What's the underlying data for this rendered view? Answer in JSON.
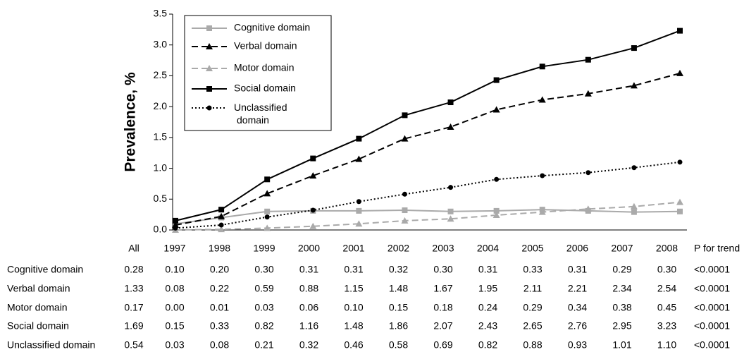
{
  "chart_data": {
    "type": "line",
    "y_label": "Prevalence, %",
    "categories": [
      "1997",
      "1998",
      "1999",
      "2000",
      "2001",
      "2002",
      "2003",
      "2004",
      "2005",
      "2006",
      "2007",
      "2008"
    ],
    "ylim": [
      0,
      3.5
    ],
    "yticks": [
      {
        "value": 0,
        "label": "0.0"
      },
      {
        "value": 0.5,
        "label": "0.5"
      },
      {
        "value": 1,
        "label": "1.0"
      },
      {
        "value": 1.5,
        "label": "1.5"
      },
      {
        "value": 2,
        "label": "2.0"
      },
      {
        "value": 2.5,
        "label": "2.5"
      },
      {
        "value": 3,
        "label": "3.0"
      },
      {
        "value": 3.5,
        "label": "3.5"
      }
    ],
    "table_headers": {
      "all": "All",
      "p_trend": "P for trend"
    },
    "series": [
      {
        "name": "Cognitive domain",
        "color": "#aaaaaa",
        "dash": "solid",
        "marker": "square",
        "all": 0.28,
        "p_trend": "<0.0001",
        "values": [
          0.1,
          0.2,
          0.3,
          0.31,
          0.31,
          0.32,
          0.3,
          0.31,
          0.33,
          0.31,
          0.29,
          0.3
        ],
        "value_labels": [
          "0.10",
          "0.20",
          "0.30",
          "0.31",
          "0.31",
          "0.32",
          "0.30",
          "0.31",
          "0.33",
          "0.31",
          "0.29",
          "0.30"
        ]
      },
      {
        "name": "Verbal domain",
        "color": "#000000",
        "dash": "dashed",
        "marker": "triangle",
        "all": 1.33,
        "p_trend": "<0.0001",
        "values": [
          0.08,
          0.22,
          0.59,
          0.88,
          1.15,
          1.48,
          1.67,
          1.95,
          2.11,
          2.21,
          2.34,
          2.54
        ],
        "value_labels": [
          "0.08",
          "0.22",
          "0.59",
          "0.88",
          "1.15",
          "1.48",
          "1.67",
          "1.95",
          "2.11",
          "2.21",
          "2.34",
          "2.54"
        ]
      },
      {
        "name": "Motor domain",
        "color": "#aaaaaa",
        "dash": "dashed",
        "marker": "triangle",
        "all": 0.17,
        "p_trend": "<0.0001",
        "values": [
          0,
          0.01,
          0.03,
          0.06,
          0.1,
          0.15,
          0.18,
          0.24,
          0.29,
          0.34,
          0.38,
          0.45
        ],
        "value_labels": [
          "0.00",
          "0.01",
          "0.03",
          "0.06",
          "0.10",
          "0.15",
          "0.18",
          "0.24",
          "0.29",
          "0.34",
          "0.38",
          "0.45"
        ]
      },
      {
        "name": "Social domain",
        "color": "#000000",
        "dash": "solid",
        "marker": "square",
        "all": 1.69,
        "p_trend": "<0.0001",
        "values": [
          0.15,
          0.33,
          0.82,
          1.16,
          1.48,
          1.86,
          2.07,
          2.43,
          2.65,
          2.76,
          2.95,
          3.23
        ],
        "value_labels": [
          "0.15",
          "0.33",
          "0.82",
          "1.16",
          "1.48",
          "1.86",
          "2.07",
          "2.43",
          "2.65",
          "2.76",
          "2.95",
          "3.23"
        ]
      },
      {
        "name": "Unclassified domain",
        "color": "#000000",
        "dash": "dotted",
        "marker": "circle",
        "all": 0.54,
        "p_trend": "<0.0001",
        "values": [
          0.03,
          0.08,
          0.21,
          0.32,
          0.46,
          0.58,
          0.69,
          0.82,
          0.88,
          0.93,
          1.01,
          1.1
        ],
        "value_labels": [
          "0.03",
          "0.08",
          "0.21",
          "0.32",
          "0.46",
          "0.58",
          "0.69",
          "0.82",
          "0.88",
          "0.93",
          "1.01",
          "1.10"
        ]
      }
    ]
  }
}
